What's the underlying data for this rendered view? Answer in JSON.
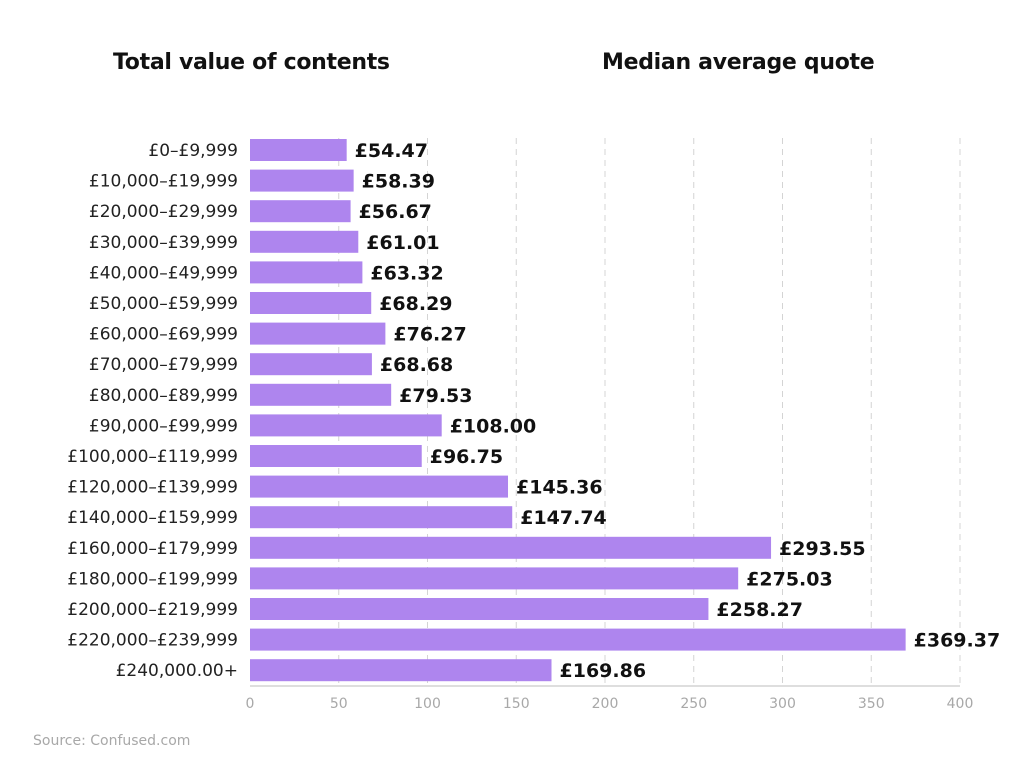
{
  "headings": {
    "left": "Total value of contents",
    "right": "Median average quote"
  },
  "source": "Source: Confused.com",
  "colors": {
    "bar": "#ae85ee",
    "grid": "#d4d4d4",
    "tick_text": "#a8a8a8"
  },
  "chart_data": {
    "type": "bar",
    "orientation": "horizontal",
    "categories": [
      "£0–£9,999",
      "£10,000–£19,999",
      "£20,000–£29,999",
      "£30,000–£39,999",
      "£40,000–£49,999",
      "£50,000–£59,999",
      "£60,000–£69,999",
      "£70,000–£79,999",
      "£80,000–£89,999",
      "£90,000–£99,999",
      "£100,000–£119,999",
      "£120,000–£139,999",
      "£140,000–£159,999",
      "£160,000–£179,999",
      "£180,000–£199,999",
      "£200,000–£219,999",
      "£220,000–£239,999",
      "£240,000.00+"
    ],
    "values": [
      54.47,
      58.39,
      56.67,
      61.01,
      63.32,
      68.29,
      76.27,
      68.68,
      79.53,
      108.0,
      96.75,
      145.36,
      147.74,
      293.55,
      275.03,
      258.27,
      369.37,
      169.86
    ],
    "value_labels": [
      "£54.47",
      "£58.39",
      "£56.67",
      "£61.01",
      "£63.32",
      "£68.29",
      "£76.27",
      "£68.68",
      "£79.53",
      "£108.00",
      "£96.75",
      "£145.36",
      "£147.74",
      "£293.55",
      "£275.03",
      "£258.27",
      "£369.37",
      "£169.86"
    ],
    "xlim": [
      0,
      400
    ],
    "xticks": [
      0,
      50,
      100,
      150,
      200,
      250,
      300,
      350,
      400
    ],
    "grid": "vertical dashed"
  }
}
